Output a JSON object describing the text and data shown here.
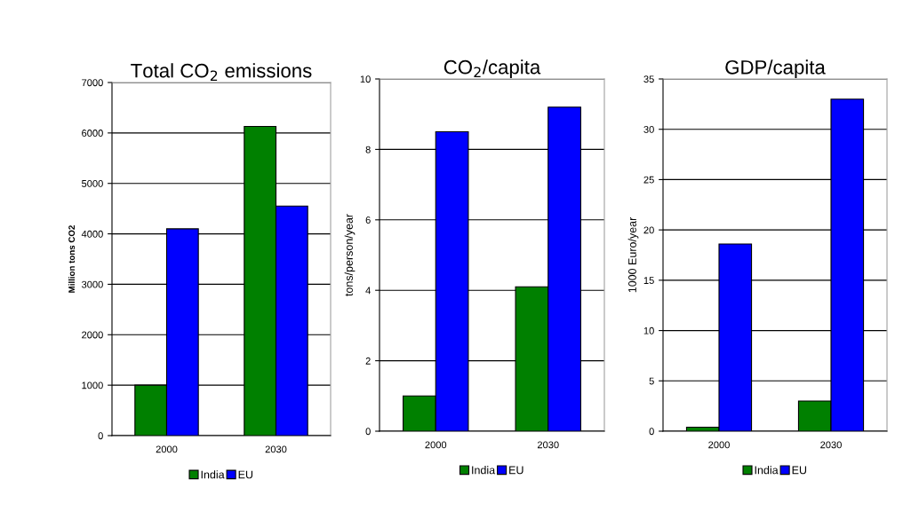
{
  "chart_data": [
    {
      "type": "bar",
      "title": "Total CO$_{2}$ emissions",
      "ylabel": "Million tons CO2",
      "categories": [
        "2000",
        "2030"
      ],
      "series": [
        {
          "name": "India",
          "color": "#008000",
          "values": [
            1000,
            6130
          ]
        },
        {
          "name": "EU",
          "color": "#0000ff",
          "values": [
            4100,
            4550
          ]
        }
      ],
      "ylim": [
        0,
        7000
      ],
      "yticks": [
        0,
        1000,
        2000,
        3000,
        4000,
        5000,
        6000,
        7000
      ],
      "grid": "y",
      "legend": "bottom"
    },
    {
      "type": "bar",
      "title": "CO$_{2}$/capita",
      "ylabel": "tons/person/year",
      "categories": [
        "2000",
        "2030"
      ],
      "series": [
        {
          "name": "India",
          "color": "#008000",
          "values": [
            1.0,
            4.1
          ]
        },
        {
          "name": "EU",
          "color": "#0000ff",
          "values": [
            8.5,
            9.2
          ]
        }
      ],
      "ylim": [
        0,
        10
      ],
      "yticks": [
        0,
        2,
        4,
        6,
        8,
        10
      ],
      "grid": "y",
      "legend": "bottom"
    },
    {
      "type": "bar",
      "title": "GDP/capita",
      "ylabel": "1000 Euro/year",
      "categories": [
        "2000",
        "2030"
      ],
      "series": [
        {
          "name": "India",
          "color": "#008000",
          "values": [
            0.4,
            3.0
          ]
        },
        {
          "name": "EU",
          "color": "#0000ff",
          "values": [
            18.6,
            33.0
          ]
        }
      ],
      "ylim": [
        0,
        35
      ],
      "yticks": [
        0,
        5,
        10,
        15,
        20,
        25,
        30,
        35
      ],
      "grid": "y",
      "legend": "bottom"
    }
  ]
}
